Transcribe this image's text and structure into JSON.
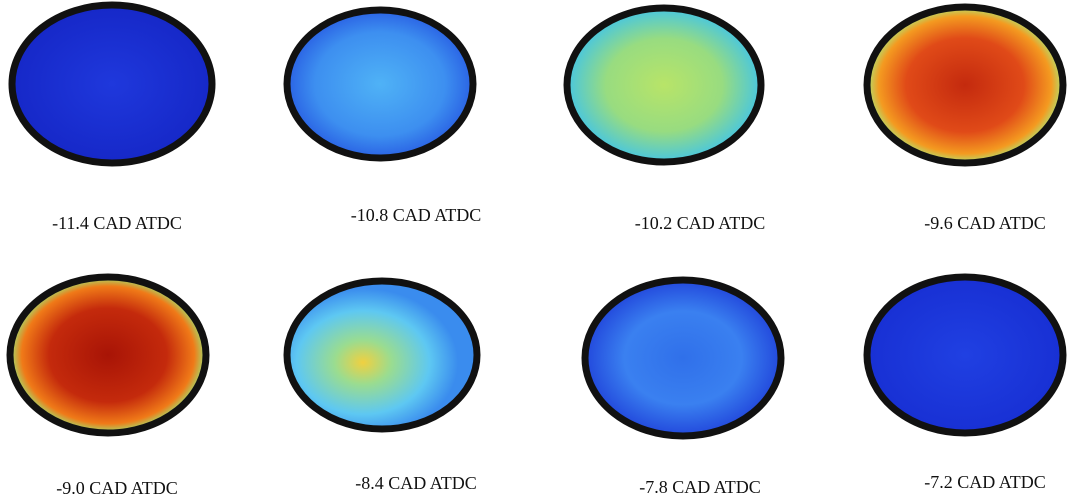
{
  "panels": [
    {
      "label": "-11.4 CAD ATDC"
    },
    {
      "label": "-10.8 CAD ATDC"
    },
    {
      "label": "-10.2 CAD ATDC"
    },
    {
      "label": "-9.6 CAD ATDC"
    },
    {
      "label": "-9.0 CAD ATDC"
    },
    {
      "label": "-8.4 CAD ATDC"
    },
    {
      "label": "-7.8 CAD ATDC"
    },
    {
      "label": "-7.2 CAD ATDC"
    }
  ]
}
